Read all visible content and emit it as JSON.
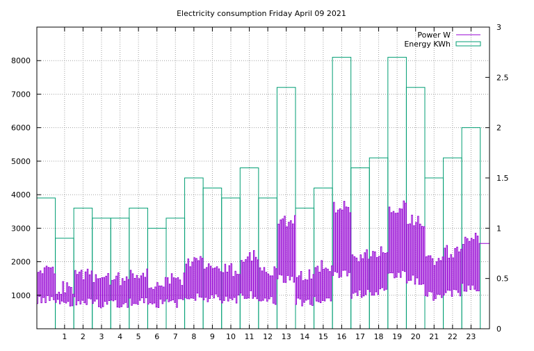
{
  "chart_data": {
    "type": "line",
    "title": "Electricity consumption Friday April 09 2021",
    "x_axis": {
      "range": [
        -0.5,
        24
      ],
      "ticks": [
        1,
        2,
        3,
        4,
        5,
        6,
        7,
        8,
        9,
        10,
        11,
        12,
        13,
        14,
        15,
        16,
        17,
        18,
        19,
        20,
        21,
        22,
        23
      ]
    },
    "y_left": {
      "label": "",
      "range": [
        0,
        9000
      ],
      "ticks": [
        1000,
        2000,
        3000,
        4000,
        5000,
        6000,
        7000,
        8000
      ]
    },
    "y_right": {
      "label": "",
      "range": [
        0,
        3
      ],
      "ticks": [
        0,
        0.5,
        1,
        1.5,
        2,
        2.5,
        3
      ]
    },
    "grid": true,
    "legend_position": "top-right",
    "series": [
      {
        "name": "Power W",
        "axis": "left",
        "color": "#9400d3",
        "style": "line"
      },
      {
        "name": "Energy KWh",
        "axis": "right",
        "color": "#009e73",
        "style": "boxes",
        "x": [
          0,
          1,
          2,
          3,
          4,
          5,
          6,
          7,
          8,
          9,
          10,
          11,
          12,
          13,
          14,
          15,
          16,
          17,
          18,
          19,
          20,
          21,
          22,
          23
        ],
        "values": [
          1.3,
          0.9,
          1.2,
          1.1,
          1.1,
          1.2,
          1.0,
          1.1,
          1.5,
          1.4,
          1.3,
          1.6,
          1.3,
          2.4,
          1.2,
          1.4,
          2.7,
          1.6,
          1.7,
          2.7,
          2.4,
          1.5,
          1.7,
          2.0
        ]
      }
    ]
  }
}
